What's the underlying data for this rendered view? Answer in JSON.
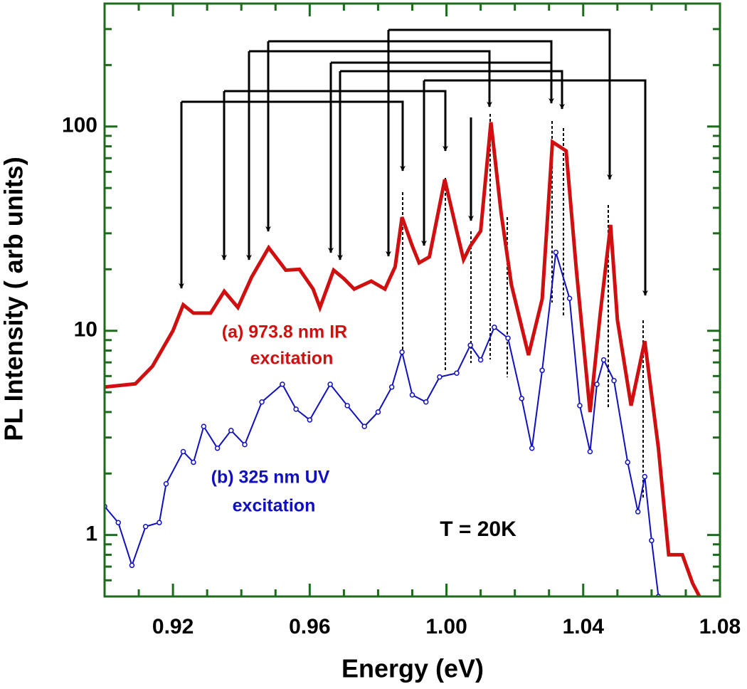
{
  "chart_data": {
    "type": "line",
    "xlabel": "Energy (eV)",
    "ylabel": "PL Intensity ( arb units)",
    "xlim": [
      0.9,
      1.08
    ],
    "xticks": [
      0.92,
      0.96,
      {
        "value": 1.0,
        "label": "1.00"
      },
      1.04,
      1.08
    ],
    "xticks_minor": [
      0.9,
      0.91,
      0.93,
      0.94,
      0.95,
      0.97,
      0.98,
      0.99,
      1.01,
      1.02,
      1.03,
      1.05,
      1.06,
      1.07
    ],
    "ylim": [
      0.5,
      400
    ],
    "yscale": "log",
    "yticks": [
      1,
      10,
      100
    ],
    "yticks_minor": [
      0.6,
      0.7,
      0.8,
      0.9,
      2,
      3,
      4,
      5,
      6,
      7,
      8,
      9,
      20,
      30,
      40,
      50,
      60,
      70,
      80,
      90,
      200,
      300
    ],
    "frame_color": "#1e6b1e",
    "annotations": [
      "(a) 973.8 nm IR",
      "excitation",
      "(b) 325 nm UV",
      "excitation",
      "T = 20K"
    ],
    "series": [
      {
        "name": "(a) 973.8 nm IR excitation",
        "color": "#d01010",
        "x": [
          0.9,
          0.909,
          0.914,
          0.92,
          0.923,
          0.926,
          0.931,
          0.935,
          0.939,
          0.943,
          0.948,
          0.953,
          0.957,
          0.961,
          0.963,
          0.967,
          0.97,
          0.973,
          0.978,
          0.982,
          0.985,
          0.987,
          0.99,
          0.992,
          0.995,
          0.9995,
          1.003,
          1.005,
          1.007,
          1.01,
          1.013,
          1.016,
          1.019,
          1.024,
          1.028,
          1.031,
          1.035,
          1.038,
          1.042,
          1.045,
          1.048,
          1.05,
          1.054,
          1.058,
          1.062,
          1.065,
          1.069,
          1.072,
          1.074
        ],
        "values": [
          5.3,
          5.5,
          6.7,
          10,
          13.4,
          12.2,
          12.2,
          15.6,
          13,
          18.3,
          25.5,
          19.8,
          20,
          16,
          13,
          19.8,
          18,
          16,
          17.5,
          16,
          20.6,
          36,
          26,
          21.5,
          23,
          55,
          30.8,
          22.3,
          26,
          30.8,
          105,
          37.6,
          16.8,
          7.6,
          14.3,
          84,
          76,
          19.8,
          4,
          12.2,
          33,
          11.3,
          4.3,
          8.9,
          2.66,
          0.8,
          0.8,
          0.58,
          0.5
        ]
      },
      {
        "name": "(b) 325 nm UV excitation",
        "color": "#1010c0",
        "x": [
          0.9,
          0.904,
          0.908,
          0.912,
          0.916,
          0.918,
          0.923,
          0.926,
          0.929,
          0.933,
          0.937,
          0.941,
          0.946,
          0.952,
          0.956,
          0.96,
          0.966,
          0.971,
          0.976,
          0.98,
          0.984,
          0.987,
          0.99,
          0.994,
          0.998,
          1.003,
          1.007,
          1.01,
          1.014,
          1.018,
          1.022,
          1.025,
          1.028,
          1.032,
          1.036,
          1.039,
          1.042,
          1.044,
          1.046,
          1.049,
          1.053,
          1.056,
          1.058,
          1.06,
          1.062
        ],
        "values": [
          1.38,
          1.15,
          0.71,
          1.1,
          1.15,
          1.78,
          2.56,
          2.27,
          3.4,
          2.66,
          3.25,
          2.77,
          4.48,
          5.47,
          4.13,
          3.66,
          5.47,
          4.3,
          3.4,
          4,
          5.3,
          7.86,
          4.85,
          4.48,
          5.94,
          6.2,
          8.5,
          7.2,
          10.4,
          9.2,
          4.66,
          2.66,
          6.4,
          24.2,
          14.4,
          4.3,
          2.56,
          5.47,
          7.2,
          5.7,
          2.27,
          1.3,
          1.93,
          0.94,
          0.5
        ]
      }
    ]
  }
}
